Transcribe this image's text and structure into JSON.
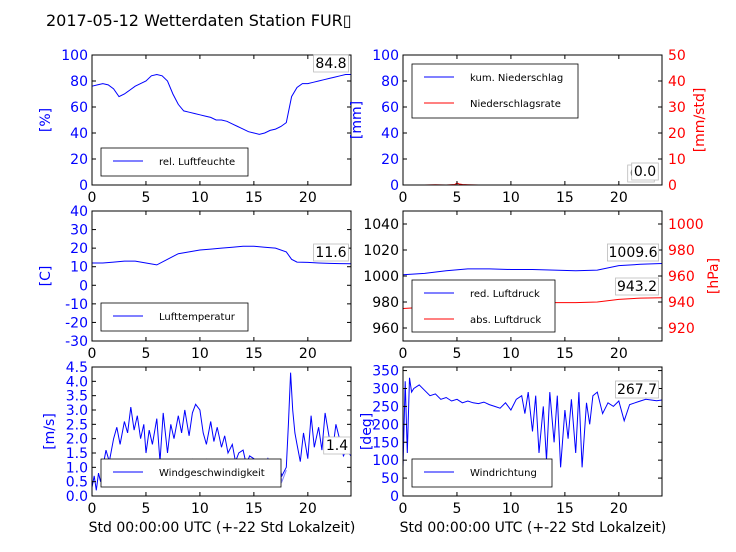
{
  "title": "2017-05-12 Wetterdaten Station FUR▯",
  "colors": {
    "blue": "#0000ff",
    "red": "#ff0000",
    "light_blue": "#8080ff",
    "black": "#000000"
  },
  "chart_data": [
    {
      "id": "humidity",
      "type": "line",
      "ylabel": "[%]",
      "ylim": [
        0,
        100
      ],
      "yticks": [
        0,
        20,
        40,
        60,
        80,
        100
      ],
      "xlim": [
        0,
        24
      ],
      "xticks": [
        0,
        5,
        10,
        15,
        20
      ],
      "legend": {
        "placement": "lower-left",
        "entries": [
          "rel. Luftfeuchte"
        ]
      },
      "annotations": [
        "84.8"
      ],
      "series": [
        {
          "name": "rel. Luftfeuchte",
          "color": "#0000ff",
          "x": [
            0,
            0.5,
            1,
            1.5,
            2,
            2.5,
            3,
            3.5,
            4,
            4.5,
            5,
            5.5,
            6,
            6.5,
            7,
            7.5,
            8,
            8.5,
            9,
            9.5,
            10,
            10.5,
            11,
            11.5,
            12,
            12.5,
            13,
            13.5,
            14,
            14.5,
            15,
            15.5,
            16,
            16.5,
            17,
            17.5,
            18,
            18.5,
            19,
            19.5,
            20,
            20.5,
            21,
            21.5,
            22,
            22.5,
            23,
            23.5,
            24
          ],
          "y": [
            76,
            77,
            78,
            77,
            74,
            68,
            70,
            73,
            76,
            78,
            80,
            84,
            85,
            84,
            80,
            70,
            62,
            57,
            56,
            55,
            54,
            53,
            52,
            50,
            50,
            49,
            47,
            45,
            43,
            41,
            40,
            39,
            40,
            42,
            43,
            45,
            48,
            68,
            75,
            78,
            78,
            79,
            80,
            81,
            82,
            83,
            84,
            85,
            85
          ]
        }
      ]
    },
    {
      "id": "precipitation",
      "type": "line",
      "ylabel": "[mm]",
      "ylabel_right": "[mm/std]",
      "ylim": [
        0,
        100
      ],
      "ylim_right": [
        0,
        50
      ],
      "yticks": [
        0,
        20,
        40,
        60,
        80,
        100
      ],
      "yticks_right": [
        0,
        10,
        20,
        30,
        40,
        50
      ],
      "xlim": [
        0,
        24
      ],
      "xticks": [
        0,
        5,
        10,
        15,
        20
      ],
      "legend": {
        "placement": "upper-left",
        "entries": [
          "kum. Niederschlag",
          "Niederschlagsrate"
        ]
      },
      "annotations": [
        "0.0",
        "0.0"
      ],
      "series": [
        {
          "name": "kum. Niederschlag",
          "axis": "left",
          "color": "#0000ff",
          "x": [
            0,
            24
          ],
          "y": [
            0,
            0
          ]
        },
        {
          "name": "Niederschlagsrate",
          "axis": "right",
          "color": "#ff0000",
          "x": [
            0,
            1,
            2,
            3,
            4,
            4.8,
            5,
            5.2,
            5.5,
            6,
            7,
            8,
            10,
            12,
            14,
            16,
            18,
            20,
            22,
            24
          ],
          "y": [
            0,
            0,
            0,
            0.1,
            0,
            0.2,
            0.8,
            0.4,
            0.2,
            0.1,
            0,
            0,
            0,
            0,
            0,
            0,
            0,
            0,
            0,
            0
          ]
        }
      ]
    },
    {
      "id": "temperature",
      "type": "line",
      "ylabel": "[C]",
      "ylim": [
        -30,
        40
      ],
      "yticks": [
        -30,
        -20,
        -10,
        0,
        10,
        20,
        30,
        40
      ],
      "xlim": [
        0,
        24
      ],
      "xticks": [
        0,
        5,
        10,
        15,
        20
      ],
      "legend": {
        "placement": "lower-left",
        "entries": [
          "Lufttemperatur"
        ]
      },
      "annotations": [
        "11.6"
      ],
      "series": [
        {
          "name": "Lufttemperatur",
          "color": "#0000ff",
          "x": [
            0,
            1,
            2,
            3,
            4,
            5,
            6,
            7,
            8,
            9,
            10,
            11,
            12,
            13,
            14,
            15,
            16,
            17,
            18,
            18.5,
            19,
            20,
            21,
            22,
            23,
            24
          ],
          "y": [
            12,
            12,
            12.5,
            13,
            13,
            12,
            11,
            14,
            17,
            18,
            19,
            19.5,
            20,
            20.5,
            21,
            21,
            20.5,
            20,
            18,
            14,
            12.5,
            12.3,
            12,
            11.8,
            11.7,
            11.6
          ]
        }
      ]
    },
    {
      "id": "pressure",
      "type": "line",
      "ylabel_right": "[hPa]",
      "ylim": [
        950,
        1050
      ],
      "ylim_right": [
        910,
        1010
      ],
      "yticks": [
        960,
        980,
        1000,
        1020,
        1040
      ],
      "yticks_right": [
        920,
        940,
        960,
        980,
        1000
      ],
      "xlim": [
        0,
        24
      ],
      "xticks": [
        0,
        5,
        10,
        15,
        20
      ],
      "legend": {
        "placement": "lower-left",
        "entries": [
          "red. Luftdruck",
          "abs. Luftdruck"
        ]
      },
      "annotations": [
        "1009.6",
        "943.2"
      ],
      "series": [
        {
          "name": "red. Luftdruck",
          "axis": "left",
          "color": "#0000ff",
          "x": [
            0,
            2,
            4,
            6,
            8,
            10,
            12,
            14,
            16,
            18,
            20,
            22,
            24
          ],
          "y": [
            1001,
            1002,
            1004,
            1005.5,
            1005.5,
            1005,
            1005,
            1004.5,
            1004,
            1004.5,
            1008,
            1009,
            1009.6
          ]
        },
        {
          "name": "abs. Luftdruck",
          "axis": "right",
          "color": "#ff0000",
          "x": [
            0,
            2,
            4,
            6,
            8,
            10,
            12,
            14,
            16,
            18,
            20,
            22,
            24
          ],
          "y": [
            935,
            936,
            938,
            939,
            940,
            940,
            940,
            939.5,
            939.5,
            940,
            942,
            943,
            943.2
          ]
        }
      ]
    },
    {
      "id": "windspeed",
      "type": "line",
      "ylabel": "[m/s]",
      "ylim": [
        0,
        4.5
      ],
      "yticks": [
        0.0,
        0.5,
        1.0,
        1.5,
        2.0,
        2.5,
        3.0,
        3.5,
        4.0,
        4.5
      ],
      "xlim": [
        0,
        24
      ],
      "xticks": [
        0,
        5,
        10,
        15,
        20
      ],
      "legend": {
        "placement": "lower-left",
        "entries": [
          "Windgeschwindigkeit"
        ]
      },
      "annotations": [
        "1.4"
      ],
      "series": [
        {
          "name": "Windgeschwindigkeit",
          "color": "#0000ff",
          "x": [
            0,
            0.2,
            0.4,
            0.6,
            0.8,
            1,
            1.3,
            1.6,
            2,
            2.3,
            2.6,
            3,
            3.3,
            3.6,
            3.9,
            4.2,
            4.5,
            4.8,
            5,
            5.3,
            5.6,
            6,
            6.3,
            6.6,
            7,
            7.3,
            7.6,
            8,
            8.3,
            8.6,
            9,
            9.3,
            9.6,
            10,
            10.3,
            10.6,
            11,
            11.3,
            11.6,
            12,
            12.3,
            12.6,
            13,
            13.3,
            13.6,
            14,
            14.3,
            14.6,
            15,
            15.3,
            15.6,
            16,
            16.3,
            16.6,
            17,
            17.3,
            17.6,
            18,
            18.2,
            18.4,
            18.6,
            18.8,
            19,
            19.3,
            19.6,
            20,
            20.3,
            20.6,
            21,
            21.3,
            21.6,
            22,
            22.3,
            22.6,
            23,
            23.3,
            23.6,
            24
          ],
          "y": [
            0.3,
            0.7,
            0.2,
            0.8,
            0.5,
            1.0,
            1.6,
            1.2,
            2.0,
            2.4,
            1.8,
            2.6,
            2.2,
            3.1,
            2.3,
            2.8,
            2.0,
            2.5,
            1.5,
            2.3,
            1.8,
            2.7,
            1.2,
            2.9,
            1.5,
            2.5,
            2.0,
            2.8,
            2.2,
            3.0,
            2.1,
            2.9,
            3.2,
            3.0,
            2.2,
            1.8,
            2.6,
            1.9,
            2.4,
            1.7,
            2.1,
            1.5,
            1.8,
            1.2,
            1.5,
            1.6,
            1.1,
            1.4,
            1.3,
            0.9,
            1.2,
            1.0,
            1.3,
            0.9,
            0.8,
            1.1,
            0.7,
            1.0,
            2.5,
            4.3,
            3.0,
            2.2,
            1.8,
            1.2,
            2.2,
            1.3,
            2.8,
            1.7,
            2.4,
            1.6,
            2.9,
            2.0,
            1.6,
            2.5,
            1.9,
            1.4,
            1.6,
            1.4
          ]
        },
        {
          "name": "",
          "color": "#8080ff",
          "x": [
            9,
            9.3,
            9.6,
            10,
            10.3,
            10.6,
            11,
            11.3,
            11.6,
            12,
            12.3,
            12.6,
            13,
            13.3,
            13.6,
            14,
            14.3,
            14.6,
            15,
            15.3,
            15.6,
            16,
            16.3,
            16.6,
            17,
            17.3,
            17.6,
            18
          ],
          "y": [
            0.8,
            1.3,
            0.6,
            1.2,
            0.5,
            1.3,
            0.7,
            1.2,
            0.4,
            1.1,
            0.6,
            1.3,
            0.5,
            1.2,
            0.7,
            1.1,
            0.4,
            1.2,
            0.6,
            1.1,
            0.5,
            1.2,
            0.4,
            1.0,
            0.6,
            1.1,
            0.5,
            0.9
          ]
        }
      ]
    },
    {
      "id": "winddirection",
      "type": "line",
      "ylabel": "[deg]",
      "ylim": [
        0,
        360
      ],
      "yticks": [
        0,
        50,
        100,
        150,
        200,
        250,
        300,
        350
      ],
      "xlim": [
        0,
        24
      ],
      "xticks": [
        0,
        5,
        10,
        15,
        20
      ],
      "legend": {
        "placement": "lower-left",
        "entries": [
          "Windrichtung"
        ]
      },
      "annotations": [
        "267.7"
      ],
      "series": [
        {
          "name": "Windrichtung",
          "color": "#0000ff",
          "x": [
            0,
            0.2,
            0.4,
            0.6,
            0.8,
            1,
            1.5,
            2,
            2.5,
            3,
            3.5,
            4,
            4.5,
            5,
            5.5,
            6,
            6.5,
            7,
            7.5,
            8,
            8.5,
            9,
            9.5,
            10,
            10.5,
            11,
            11.3,
            11.6,
            12,
            12.3,
            12.6,
            13,
            13.3,
            13.6,
            14,
            14.3,
            14.6,
            15,
            15.3,
            15.6,
            16,
            16.3,
            16.6,
            17,
            17.3,
            17.6,
            18,
            18.5,
            19,
            19.5,
            20,
            20.5,
            21,
            21.5,
            22,
            22.5,
            23,
            23.5,
            24
          ],
          "y": [
            80,
            320,
            120,
            330,
            290,
            300,
            310,
            295,
            280,
            285,
            270,
            275,
            265,
            270,
            260,
            265,
            260,
            258,
            262,
            255,
            250,
            245,
            260,
            240,
            270,
            280,
            230,
            290,
            180,
            280,
            120,
            250,
            100,
            290,
            150,
            280,
            80,
            240,
            160,
            270,
            120,
            290,
            80,
            260,
            200,
            280,
            290,
            230,
            260,
            250,
            265,
            210,
            255,
            260,
            265,
            270,
            268,
            266,
            268
          ]
        }
      ]
    }
  ],
  "x_axis_caption": "Std 00:00:00 UTC (+-22 Std Lokalzeit)"
}
